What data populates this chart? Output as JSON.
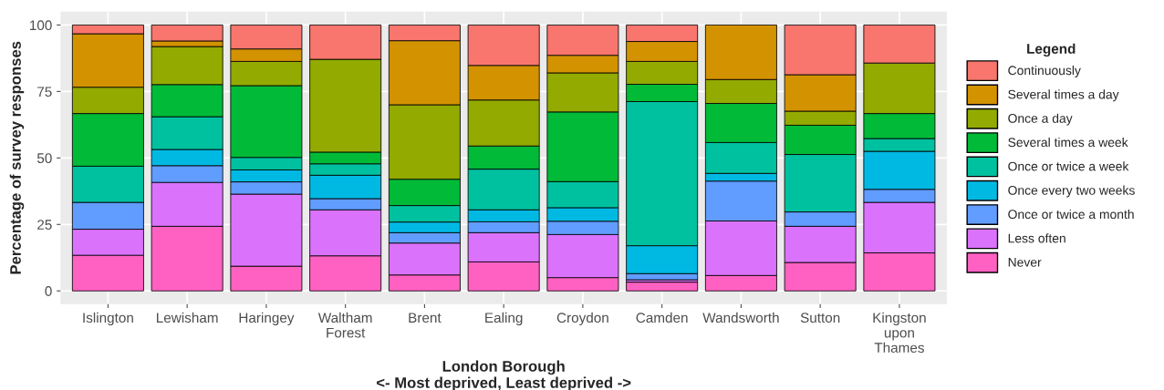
{
  "chart_data": {
    "type": "bar",
    "stacked": true,
    "xlabel": "London Borough\n<- Most deprived, Least deprived ->",
    "ylabel": "Percentage of survey responses",
    "legend_title": "Legend",
    "legend": "right",
    "grid": true,
    "ylim": [
      -5,
      105
    ],
    "yticks": [
      0,
      25,
      50,
      75,
      100
    ],
    "categories": [
      "Islington",
      "Lewisham",
      "Haringey",
      "Waltham\nForest",
      "Brent",
      "Ealing",
      "Croydon",
      "Camden",
      "Wandsworth",
      "Sutton",
      "Kingston\nupon\nThames"
    ],
    "series": [
      {
        "name": "Never",
        "color": "#ff61c3",
        "values": [
          13.4,
          24.3,
          9.3,
          13.2,
          6.0,
          10.9,
          5.0,
          3.3,
          5.8,
          10.7,
          14.3
        ]
      },
      {
        "name": "Less often",
        "color": "#db72fb",
        "values": [
          9.8,
          16.5,
          27.1,
          17.3,
          12.0,
          11.0,
          16.2,
          0.9,
          20.5,
          13.6,
          19.0
        ]
      },
      {
        "name": "Once or twice a month",
        "color": "#619cff",
        "values": [
          10.1,
          6.3,
          4.6,
          4.2,
          3.9,
          4.1,
          5.0,
          2.3,
          15.0,
          5.4,
          4.9
        ]
      },
      {
        "name": "Once every two weeks",
        "color": "#00b9e3",
        "values": [
          null,
          6.1,
          4.5,
          8.8,
          4.0,
          4.5,
          5.1,
          10.5,
          2.9,
          null,
          14.3
        ]
      },
      {
        "name": "Once or twice a week",
        "color": "#00c19f",
        "values": [
          13.6,
          12.3,
          4.7,
          4.3,
          6.2,
          15.3,
          9.8,
          54.2,
          11.6,
          21.6,
          4.8
        ]
      },
      {
        "name": "Several times a week",
        "color": "#00ba38",
        "values": [
          19.8,
          12.1,
          27.0,
          4.4,
          9.9,
          8.7,
          26.2,
          6.5,
          14.7,
          11.0,
          9.4
        ]
      },
      {
        "name": "Once a day",
        "color": "#93aa00",
        "values": [
          9.9,
          14.3,
          9.1,
          34.9,
          28.0,
          17.3,
          14.7,
          8.6,
          9.0,
          5.3,
          19.0
        ]
      },
      {
        "name": "Several times a day",
        "color": "#d39200",
        "values": [
          20.1,
          2.1,
          4.7,
          null,
          24.1,
          13.0,
          6.6,
          7.5,
          20.5,
          13.7,
          null
        ]
      },
      {
        "name": "Continuously",
        "color": "#f8766d",
        "values": [
          3.3,
          6.0,
          9.0,
          12.9,
          5.9,
          15.2,
          11.4,
          6.2,
          null,
          18.7,
          14.3
        ]
      }
    ]
  }
}
